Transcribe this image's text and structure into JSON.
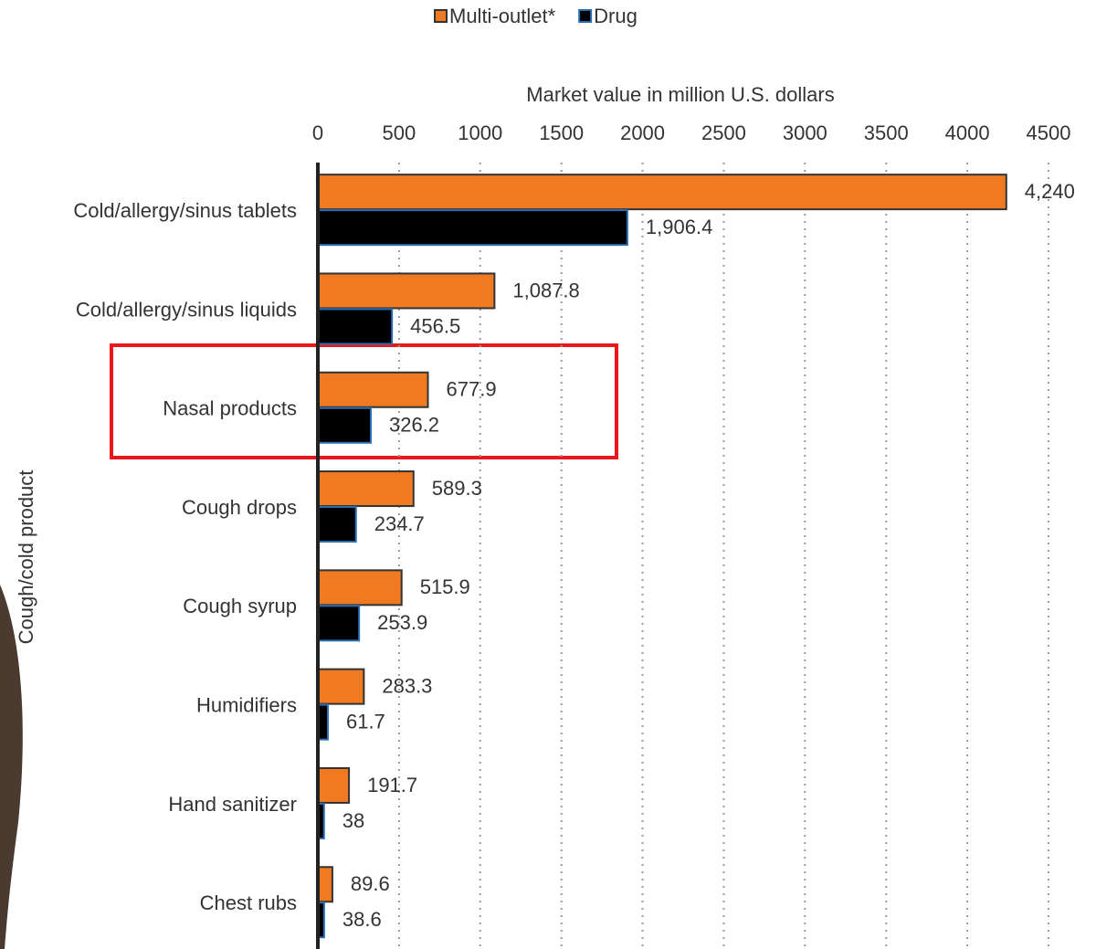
{
  "chart_data": {
    "type": "hbar",
    "x_label": "Market value in million U.S. dollars",
    "y_label": "Cough/cold product",
    "categories": [
      "Cold/allergy/sinus tablets",
      "Cold/allergy/sinus liquids",
      "Nasal products",
      "Cough drops",
      "Cough syrup",
      "Humidifiers",
      "Hand sanitizer",
      "Chest rubs"
    ],
    "series": [
      {
        "name": "Multi-outlet*",
        "color": "#f07a22",
        "stroke": "#333333",
        "values": [
          4240,
          1087.8,
          677.9,
          589.3,
          515.9,
          283.3,
          191.7,
          89.6
        ],
        "value_labels": [
          "4,240",
          "1,087.8",
          "677.9",
          "589.3",
          "515.9",
          "283.3",
          "191.7",
          "89.6"
        ]
      },
      {
        "name": "Drug",
        "color": "#000000",
        "stroke": "#2a6fb5",
        "values": [
          1906.4,
          456.5,
          326.2,
          234.7,
          253.9,
          61.7,
          38,
          38.6
        ],
        "value_labels": [
          "1,906.4",
          "456.5",
          "326.2",
          "234.7",
          "253.9",
          "61.7",
          "38",
          "38.6"
        ]
      }
    ],
    "xlim": [
      0,
      4500
    ],
    "xticks": [
      0,
      500,
      1000,
      1500,
      2000,
      2500,
      3000,
      3500,
      4000,
      4500
    ],
    "grid": true,
    "legend": "top"
  }
}
